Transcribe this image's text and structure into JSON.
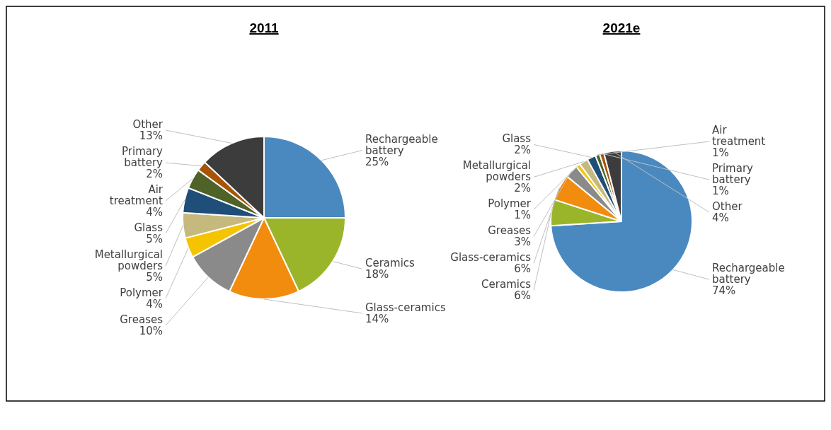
{
  "chart_data": [
    {
      "type": "pie",
      "title": "2011",
      "categories": [
        "Rechargeable battery",
        "Ceramics",
        "Glass-ceramics",
        "Greases",
        "Polymer",
        "Metallurgical powders",
        "Glass",
        "Air treatment",
        "Primary battery",
        "Other"
      ],
      "values": [
        25,
        18,
        14,
        10,
        4,
        5,
        5,
        4,
        2,
        13
      ],
      "value_labels": [
        "25%",
        "18%",
        "14%",
        "10%",
        "4%",
        "5%",
        "5%",
        "4%",
        "2%",
        "13%"
      ],
      "colors": [
        "#4a89c0",
        "#9bb52b",
        "#f28c0f",
        "#8a8a8a",
        "#f5c400",
        "#c6b97e",
        "#1f4e79",
        "#4f6228",
        "#a85406",
        "#3c3c3c"
      ]
    },
    {
      "type": "pie",
      "title": "2021e",
      "categories": [
        "Rechargeable battery",
        "Ceramics",
        "Glass-ceramics",
        "Greases",
        "Polymer",
        "Metallurgical powders",
        "Glass",
        "Air treatment",
        "Primary battery",
        "Other"
      ],
      "values": [
        74,
        6,
        6,
        3,
        1,
        2,
        2,
        1,
        1,
        4
      ],
      "value_labels": [
        "74%",
        "6%",
        "6%",
        "3%",
        "1%",
        "2%",
        "2%",
        "1%",
        "1%",
        "4%"
      ],
      "colors": [
        "#4a89c0",
        "#9bb52b",
        "#f28c0f",
        "#8a8a8a",
        "#f5c400",
        "#c6b97e",
        "#1f4e79",
        "#4f6228",
        "#a85406",
        "#3c3c3c"
      ]
    }
  ]
}
